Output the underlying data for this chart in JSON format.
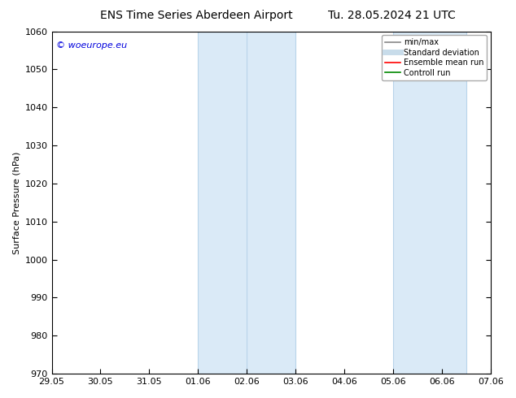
{
  "title_left": "ENS Time Series Aberdeen Airport",
  "title_right": "Tu. 28.05.2024 21 UTC",
  "ylabel": "Surface Pressure (hPa)",
  "ylim": [
    970,
    1060
  ],
  "yticks": [
    970,
    980,
    990,
    1000,
    1010,
    1020,
    1030,
    1040,
    1050,
    1060
  ],
  "xtick_labels": [
    "29.05",
    "30.05",
    "31.05",
    "01.06",
    "02.06",
    "03.06",
    "04.06",
    "05.06",
    "06.06",
    "07.06"
  ],
  "xtick_positions": [
    0,
    1,
    2,
    3,
    4,
    5,
    6,
    7,
    8,
    9
  ],
  "shaded_bands": [
    {
      "x_start": 3,
      "x_end": 5,
      "color": "#daeaf7"
    },
    {
      "x_start": 7,
      "x_end": 8.5,
      "color": "#daeaf7"
    }
  ],
  "band_edge_lines": [
    {
      "x": 3,
      "color": "#b8d4ea"
    },
    {
      "x": 4,
      "color": "#b8d4ea"
    },
    {
      "x": 5,
      "color": "#b8d4ea"
    },
    {
      "x": 7,
      "color": "#b8d4ea"
    },
    {
      "x": 8.5,
      "color": "#b8d4ea"
    }
  ],
  "watermark_text": "© woeurope.eu",
  "watermark_color": "#0000dd",
  "legend_items": [
    {
      "label": "min/max",
      "color": "#888888",
      "lw": 1.2,
      "style": "solid"
    },
    {
      "label": "Standard deviation",
      "color": "#c8dcea",
      "lw": 5,
      "style": "solid"
    },
    {
      "label": "Ensemble mean run",
      "color": "#ff0000",
      "lw": 1.2,
      "style": "solid"
    },
    {
      "label": "Controll run",
      "color": "#008800",
      "lw": 1.2,
      "style": "solid"
    }
  ],
  "bg_color": "#ffffff",
  "axes_bg_color": "#ffffff",
  "title_fontsize": 10,
  "label_fontsize": 8,
  "tick_fontsize": 8,
  "watermark_fontsize": 8
}
